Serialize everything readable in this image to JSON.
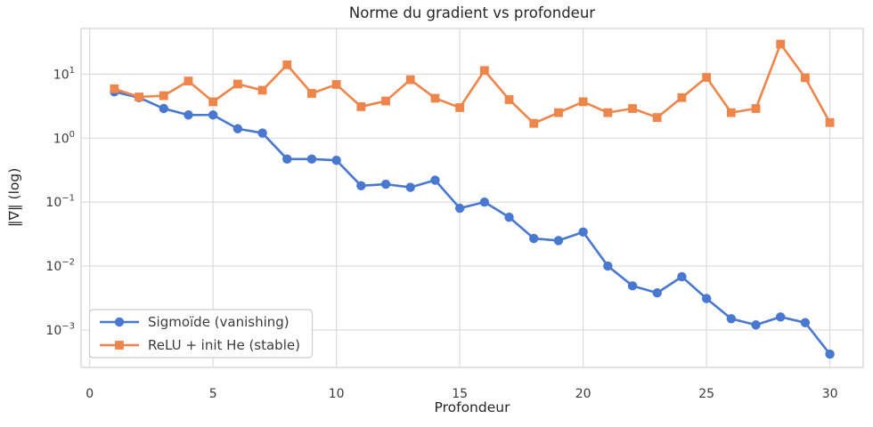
{
  "chart_data": {
    "type": "line",
    "title": "Norme du gradient vs profondeur",
    "xlabel": "Profondeur",
    "ylabel": "‖∇‖ (log)",
    "yscale": "log",
    "grid": true,
    "legend_position": "lower left",
    "xlim": [
      -0.35,
      31.35
    ],
    "ylim": [
      0.00026,
      51.8
    ],
    "xticks": [
      0,
      5,
      10,
      15,
      20,
      25,
      30
    ],
    "ytick_exponents": [
      1,
      0,
      -1,
      -2,
      -3
    ],
    "x": [
      1,
      2,
      3,
      4,
      5,
      6,
      7,
      8,
      9,
      10,
      11,
      12,
      13,
      14,
      15,
      16,
      17,
      18,
      19,
      20,
      21,
      22,
      23,
      24,
      25,
      26,
      27,
      28,
      29,
      30
    ],
    "series": [
      {
        "name": "Sigmoïde (vanishing)",
        "color": "#4878d0",
        "marker": "circle",
        "values": [
          5.3,
          4.3,
          2.9,
          2.3,
          2.3,
          1.4,
          1.2,
          0.47,
          0.47,
          0.45,
          0.18,
          0.19,
          0.17,
          0.22,
          0.08,
          0.1,
          0.058,
          0.027,
          0.025,
          0.034,
          0.01,
          0.0049,
          0.0038,
          0.0068,
          0.0031,
          0.0015,
          0.0012,
          0.0016,
          0.0013,
          0.00042
        ]
      },
      {
        "name": "ReLU + init He (stable)",
        "color": "#ee854a",
        "marker": "square",
        "values": [
          5.9,
          4.4,
          4.6,
          7.8,
          3.7,
          7.0,
          5.6,
          14.0,
          5.0,
          6.9,
          3.1,
          3.8,
          8.2,
          4.2,
          3.0,
          11.4,
          4.0,
          1.7,
          2.5,
          3.7,
          2.5,
          2.9,
          2.1,
          4.3,
          8.9,
          2.5,
          2.9,
          29.5,
          8.8,
          1.75
        ]
      }
    ],
    "style": {
      "grid_color": "#d9d9d9",
      "border_color": "#d4d4d4",
      "text_color": "#3b3b3b",
      "title_color": "#262626",
      "legend_border_color": "#cccccc",
      "legend_bg": "#ffffff"
    }
  }
}
